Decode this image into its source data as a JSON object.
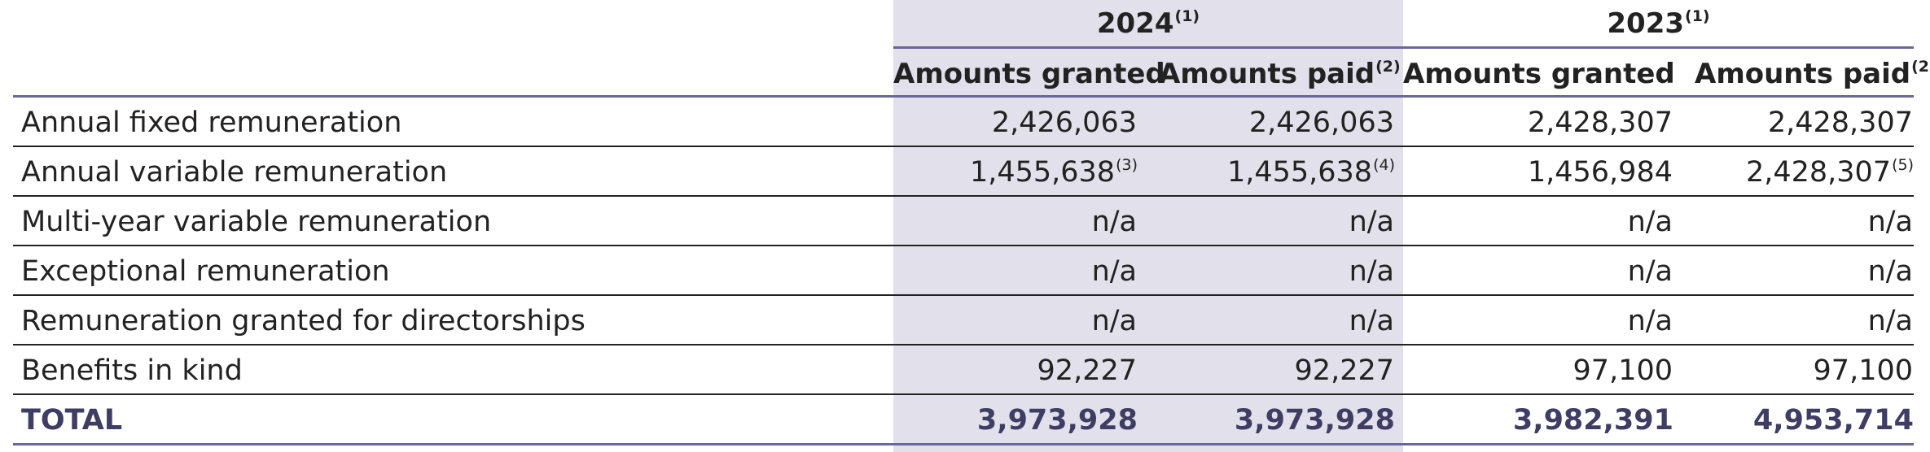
{
  "header": {
    "years": [
      {
        "label": "2024",
        "note": "(1)"
      },
      {
        "label": "2023",
        "note": "(1)"
      }
    ],
    "subheaders": [
      {
        "label": "Amounts granted",
        "note": ""
      },
      {
        "label": "Amounts paid",
        "note": "(2)"
      },
      {
        "label": "Amounts granted",
        "note": ""
      },
      {
        "label": "Amounts paid",
        "note": "(2)"
      }
    ]
  },
  "rows": [
    {
      "label": "Annual fixed remuneration",
      "values": [
        {
          "v": "2,426,063",
          "n": ""
        },
        {
          "v": "2,426,063",
          "n": ""
        },
        {
          "v": "2,428,307",
          "n": ""
        },
        {
          "v": "2,428,307",
          "n": ""
        }
      ]
    },
    {
      "label": "Annual variable remuneration",
      "values": [
        {
          "v": "1,455,638",
          "n": "(3)"
        },
        {
          "v": "1,455,638",
          "n": "(4)"
        },
        {
          "v": "1,456,984",
          "n": ""
        },
        {
          "v": "2,428,307",
          "n": "(5)"
        }
      ]
    },
    {
      "label": "Multi-year variable remuneration",
      "values": [
        {
          "v": "n/a",
          "n": ""
        },
        {
          "v": "n/a",
          "n": ""
        },
        {
          "v": "n/a",
          "n": ""
        },
        {
          "v": "n/a",
          "n": ""
        }
      ]
    },
    {
      "label": "Exceptional remuneration",
      "values": [
        {
          "v": "n/a",
          "n": ""
        },
        {
          "v": "n/a",
          "n": ""
        },
        {
          "v": "n/a",
          "n": ""
        },
        {
          "v": "n/a",
          "n": ""
        }
      ]
    },
    {
      "label": "Remuneration granted for directorships",
      "values": [
        {
          "v": "n/a",
          "n": ""
        },
        {
          "v": "n/a",
          "n": ""
        },
        {
          "v": "n/a",
          "n": ""
        },
        {
          "v": "n/a",
          "n": ""
        }
      ]
    },
    {
      "label": "Benefits in kind",
      "values": [
        {
          "v": "92,227",
          "n": ""
        },
        {
          "v": "92,227",
          "n": ""
        },
        {
          "v": "97,100",
          "n": ""
        },
        {
          "v": "97,100",
          "n": ""
        }
      ]
    }
  ],
  "total": {
    "label": "TOTAL",
    "values": [
      "3,973,928",
      "3,973,928",
      "3,982,391",
      "4,953,714"
    ]
  }
}
